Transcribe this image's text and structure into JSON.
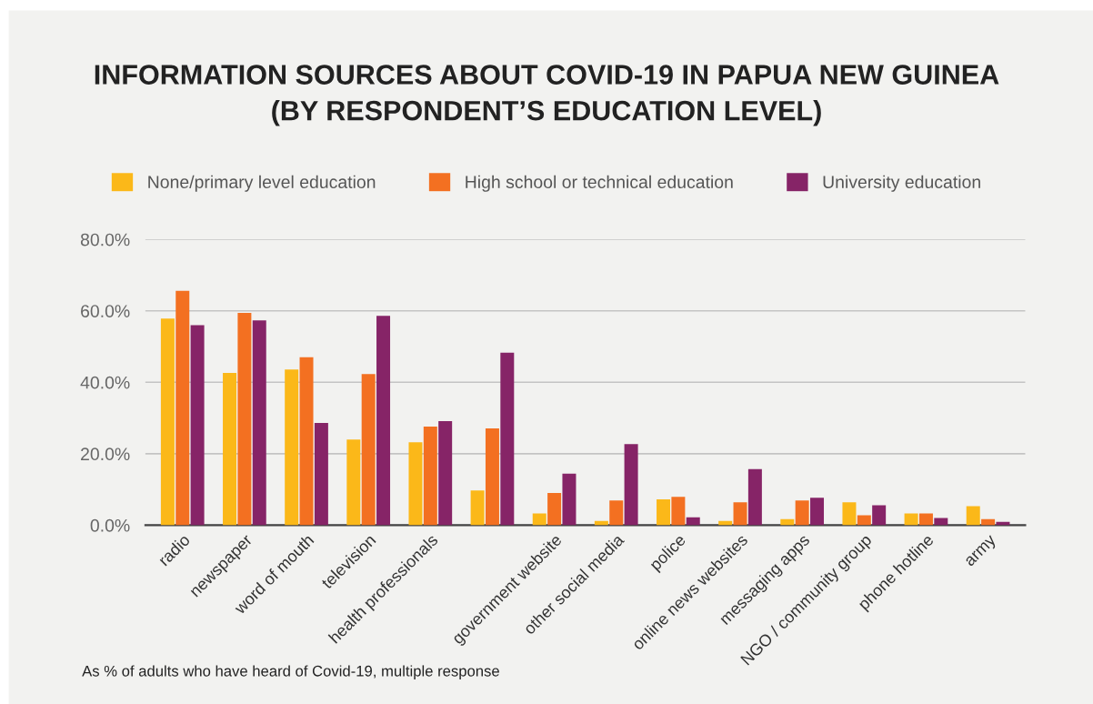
{
  "chart_data": {
    "type": "bar",
    "title": "INFORMATION SOURCES ABOUT COVID-19 IN PAPUA NEW GUINEA\n(BY RESPONDENT’S EDUCATION LEVEL)",
    "categories": [
      "radio",
      "newspaper",
      "word of mouth",
      "television",
      "health professionals",
      null,
      "government website",
      "other social media",
      "police",
      "online news websites",
      "messaging apps",
      "NGO / community group",
      "phone hotline",
      "army"
    ],
    "series": [
      {
        "name": "None/primary level education",
        "color": "#fbb819",
        "values": [
          57.8,
          42.6,
          43.6,
          24.0,
          23.2,
          9.7,
          3.3,
          1.2,
          7.2,
          1.2,
          1.7,
          6.4,
          3.3,
          5.3
        ]
      },
      {
        "name": "High school or technical education",
        "color": "#f37021",
        "values": [
          65.6,
          59.4,
          47.0,
          42.3,
          27.6,
          27.1,
          9.0,
          6.9,
          7.9,
          6.4,
          6.9,
          2.8,
          3.3,
          1.7
        ]
      },
      {
        "name": "University education",
        "color": "#862467",
        "values": [
          56.0,
          57.3,
          28.6,
          58.6,
          29.1,
          48.3,
          14.4,
          22.7,
          2.2,
          15.7,
          7.7,
          5.6,
          2.0,
          0.9
        ]
      }
    ],
    "ylim": [
      0,
      80
    ],
    "yticks": [
      {
        "value": 0,
        "label": "0.0%"
      },
      {
        "value": 20,
        "label": "20.0%"
      },
      {
        "value": 40,
        "label": "40.0%"
      },
      {
        "value": 60,
        "label": "60.0%"
      },
      {
        "value": 80,
        "label": "80.0%"
      }
    ],
    "grid": "y",
    "legend": "top",
    "annotations": [
      "As % of adults who have heard of Covid-19, multiple response"
    ]
  }
}
